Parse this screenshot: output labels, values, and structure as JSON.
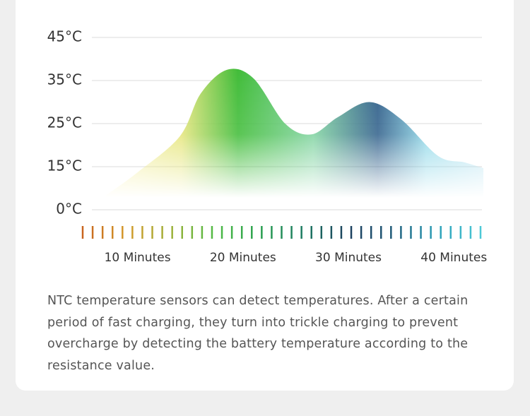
{
  "chart_data": {
    "type": "area",
    "x": [
      7,
      10,
      14,
      16,
      18.5,
      21,
      24,
      26.5,
      29,
      32,
      35,
      38.5,
      41,
      42.8
    ],
    "values": [
      5,
      13,
      22,
      32,
      37.5,
      35.5,
      25,
      22.5,
      26.5,
      30,
      26,
      17.5,
      16,
      14.5
    ],
    "xlim": [
      5,
      43
    ],
    "xticks": [
      {
        "value": 10,
        "label": "10 Minutes"
      },
      {
        "value": 20,
        "label": "20 Minutes"
      },
      {
        "value": 30,
        "label": "30 Minutes"
      },
      {
        "value": 40,
        "label": "40 Minutes"
      }
    ],
    "ylim": [
      0,
      45
    ],
    "yticks": [
      {
        "value": 0,
        "label": "0°C"
      },
      {
        "value": 15,
        "label": "15°C"
      },
      {
        "value": 25,
        "label": "25°C"
      },
      {
        "value": 35,
        "label": "35°C"
      },
      {
        "value": 45,
        "label": "45°C"
      }
    ],
    "grid": true
  },
  "description": "NTC temperature sensors can detect temperatures. After a certain period of fast charging, they turn into trickle charging to prevent overcharge by detecting the battery temperature according to the resistance value."
}
